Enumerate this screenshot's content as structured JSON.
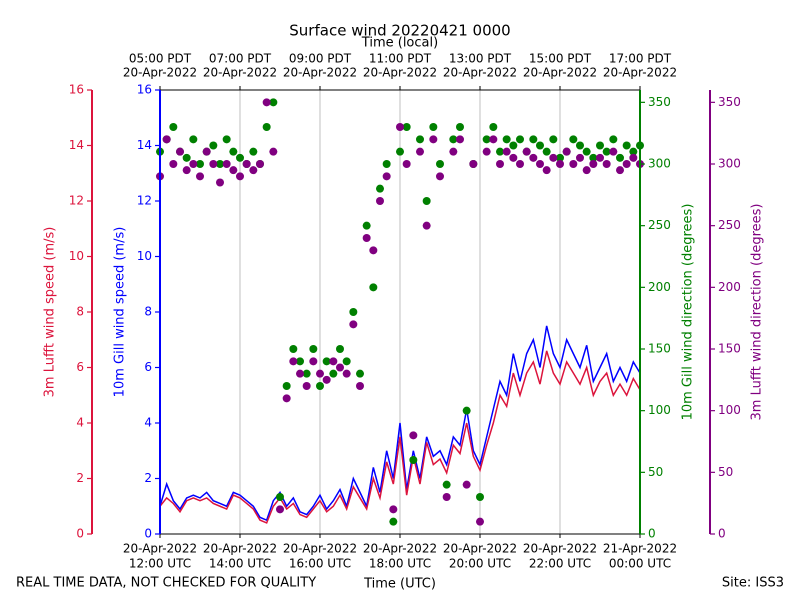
{
  "chart_data": {
    "type": "line",
    "title": "Surface wind 20220421 0000",
    "xlabel": "Time (UTC)",
    "x2label": "Time (local)",
    "ylabel": "10m Gill wind speed (m/s)",
    "y2label": "10m Gill wind direction (degrees)",
    "y3label": "3m Lufft wind speed (m/s)",
    "y4label": "3m Lufft wind direction (degrees)",
    "footer_left": "REAL TIME DATA, NOT CHECKED FOR QUALITY",
    "footer_right": "Site: ISS3",
    "grid": "x",
    "xlim": [
      "2022-04-20T12:00",
      "2022-04-21T00:00"
    ],
    "xticks": [
      {
        "value": "2022-04-20T12:00",
        "label": [
          "20-Apr-2022",
          "12:00 UTC"
        ]
      },
      {
        "value": "2022-04-20T14:00",
        "label": [
          "20-Apr-2022",
          "14:00 UTC"
        ]
      },
      {
        "value": "2022-04-20T16:00",
        "label": [
          "20-Apr-2022",
          "16:00 UTC"
        ]
      },
      {
        "value": "2022-04-20T18:00",
        "label": [
          "20-Apr-2022",
          "18:00 UTC"
        ]
      },
      {
        "value": "2022-04-20T20:00",
        "label": [
          "20-Apr-2022",
          "20:00 UTC"
        ]
      },
      {
        "value": "2022-04-20T22:00",
        "label": [
          "20-Apr-2022",
          "22:00 UTC"
        ]
      },
      {
        "value": "2022-04-21T00:00",
        "label": [
          "21-Apr-2022",
          "00:00 UTC"
        ]
      }
    ],
    "x2ticks": [
      {
        "value": "2022-04-20T12:00",
        "label": [
          "05:00 PDT",
          "20-Apr-2022"
        ]
      },
      {
        "value": "2022-04-20T14:00",
        "label": [
          "07:00 PDT",
          "20-Apr-2022"
        ]
      },
      {
        "value": "2022-04-20T16:00",
        "label": [
          "09:00 PDT",
          "20-Apr-2022"
        ]
      },
      {
        "value": "2022-04-20T18:00",
        "label": [
          "11:00 PDT",
          "20-Apr-2022"
        ]
      },
      {
        "value": "2022-04-20T20:00",
        "label": [
          "13:00 PDT",
          "20-Apr-2022"
        ]
      },
      {
        "value": "2022-04-20T22:00",
        "label": [
          "15:00 PDT",
          "20-Apr-2022"
        ]
      },
      {
        "value": "2022-04-21T00:00",
        "label": [
          "17:00 PDT",
          "20-Apr-2022"
        ]
      }
    ],
    "ylim": [
      0,
      16
    ],
    "yticks": [
      0,
      2,
      4,
      6,
      8,
      10,
      12,
      14,
      16
    ],
    "y2lim": [
      0,
      360
    ],
    "y2ticks": [
      0,
      50,
      100,
      150,
      200,
      250,
      300,
      350
    ],
    "y3lim": [
      0,
      16
    ],
    "y3ticks": [
      0,
      2,
      4,
      6,
      8,
      10,
      12,
      14,
      16
    ],
    "y4lim": [
      0,
      360
    ],
    "y4ticks": [
      0,
      50,
      100,
      150,
      200,
      250,
      300,
      350
    ],
    "x": [
      "2022-04-20T12:00",
      "2022-04-20T12:10",
      "2022-04-20T12:20",
      "2022-04-20T12:30",
      "2022-04-20T12:40",
      "2022-04-20T12:50",
      "2022-04-20T13:00",
      "2022-04-20T13:10",
      "2022-04-20T13:20",
      "2022-04-20T13:30",
      "2022-04-20T13:40",
      "2022-04-20T13:50",
      "2022-04-20T14:00",
      "2022-04-20T14:10",
      "2022-04-20T14:20",
      "2022-04-20T14:30",
      "2022-04-20T14:40",
      "2022-04-20T14:50",
      "2022-04-20T15:00",
      "2022-04-20T15:10",
      "2022-04-20T15:20",
      "2022-04-20T15:30",
      "2022-04-20T15:40",
      "2022-04-20T15:50",
      "2022-04-20T16:00",
      "2022-04-20T16:10",
      "2022-04-20T16:20",
      "2022-04-20T16:30",
      "2022-04-20T16:40",
      "2022-04-20T16:50",
      "2022-04-20T17:00",
      "2022-04-20T17:10",
      "2022-04-20T17:20",
      "2022-04-20T17:30",
      "2022-04-20T17:40",
      "2022-04-20T17:50",
      "2022-04-20T18:00",
      "2022-04-20T18:10",
      "2022-04-20T18:20",
      "2022-04-20T18:30",
      "2022-04-20T18:40",
      "2022-04-20T18:50",
      "2022-04-20T19:00",
      "2022-04-20T19:10",
      "2022-04-20T19:20",
      "2022-04-20T19:30",
      "2022-04-20T19:40",
      "2022-04-20T19:50",
      "2022-04-20T20:00",
      "2022-04-20T20:10",
      "2022-04-20T20:20",
      "2022-04-20T20:30",
      "2022-04-20T20:40",
      "2022-04-20T20:50",
      "2022-04-20T21:00",
      "2022-04-20T21:10",
      "2022-04-20T21:20",
      "2022-04-20T21:30",
      "2022-04-20T21:40",
      "2022-04-20T21:50",
      "2022-04-20T22:00",
      "2022-04-20T22:10",
      "2022-04-20T22:20",
      "2022-04-20T22:30",
      "2022-04-20T22:40",
      "2022-04-20T22:50",
      "2022-04-20T23:00",
      "2022-04-20T23:10",
      "2022-04-20T23:20",
      "2022-04-20T23:30",
      "2022-04-20T23:40",
      "2022-04-20T23:50",
      "2022-04-21T00:00"
    ],
    "series": [
      {
        "name": "10m Gill wind speed",
        "color": "#0000ff",
        "axis": "y",
        "type": "line",
        "values": [
          1.0,
          1.8,
          1.2,
          0.9,
          1.3,
          1.4,
          1.3,
          1.5,
          1.2,
          1.1,
          1.0,
          1.5,
          1.4,
          1.2,
          1.0,
          0.6,
          0.5,
          1.2,
          1.5,
          1.0,
          1.3,
          0.8,
          0.7,
          1.0,
          1.4,
          0.9,
          1.2,
          1.6,
          1.0,
          2.0,
          1.5,
          1.0,
          2.4,
          1.5,
          3.0,
          2.0,
          4.0,
          1.6,
          3.0,
          2.0,
          3.5,
          2.8,
          3.0,
          2.5,
          3.5,
          3.2,
          4.5,
          3.0,
          2.5,
          3.5,
          4.5,
          5.5,
          5.0,
          6.5,
          5.5,
          6.5,
          7.0,
          6.0,
          7.5,
          6.5,
          6.0,
          7.0,
          6.5,
          6.0,
          6.8,
          5.5,
          6.0,
          6.5,
          5.5,
          6.0,
          5.5,
          6.2,
          5.8
        ]
      },
      {
        "name": "3m Lufft wind speed",
        "color": "#dc143c",
        "axis": "y3",
        "type": "line",
        "values": [
          1.0,
          1.3,
          1.1,
          0.8,
          1.2,
          1.3,
          1.2,
          1.3,
          1.1,
          1.0,
          0.9,
          1.4,
          1.3,
          1.1,
          0.9,
          0.5,
          0.4,
          1.0,
          1.3,
          0.9,
          1.1,
          0.7,
          0.6,
          0.9,
          1.2,
          0.8,
          1.0,
          1.4,
          0.9,
          1.7,
          1.3,
          0.9,
          2.0,
          1.3,
          2.6,
          1.8,
          3.5,
          1.4,
          2.8,
          1.8,
          3.3,
          2.5,
          2.7,
          2.2,
          3.2,
          2.9,
          4.0,
          2.8,
          2.3,
          3.2,
          4.0,
          5.0,
          4.6,
          5.8,
          5.0,
          5.8,
          6.2,
          5.4,
          6.6,
          5.8,
          5.4,
          6.2,
          5.8,
          5.4,
          6.0,
          5.0,
          5.5,
          5.8,
          5.0,
          5.4,
          5.0,
          5.6,
          5.2
        ]
      },
      {
        "name": "10m Gill wind direction",
        "color": "#008000",
        "axis": "y2",
        "type": "scatter",
        "values": [
          310,
          320,
          330,
          310,
          305,
          320,
          300,
          310,
          315,
          300,
          320,
          310,
          305,
          300,
          310,
          300,
          330,
          350,
          30,
          120,
          150,
          140,
          130,
          150,
          120,
          140,
          130,
          150,
          140,
          180,
          130,
          250,
          200,
          280,
          300,
          10,
          310,
          330,
          60,
          320,
          270,
          330,
          300,
          40,
          320,
          330,
          100,
          300,
          30,
          320,
          330,
          310,
          320,
          315,
          320,
          310,
          320,
          315,
          310,
          320,
          305,
          310,
          320,
          315,
          310,
          305,
          315,
          310,
          320,
          305,
          315,
          310,
          315
        ]
      },
      {
        "name": "3m Lufft wind direction",
        "color": "#800080",
        "axis": "y4",
        "type": "scatter",
        "values": [
          290,
          320,
          300,
          310,
          295,
          300,
          290,
          310,
          300,
          285,
          300,
          295,
          290,
          300,
          295,
          300,
          350,
          310,
          20,
          110,
          140,
          130,
          120,
          140,
          130,
          125,
          140,
          135,
          130,
          170,
          120,
          240,
          230,
          270,
          290,
          20,
          330,
          300,
          80,
          310,
          250,
          320,
          290,
          30,
          310,
          320,
          40,
          300,
          10,
          310,
          320,
          300,
          310,
          305,
          300,
          310,
          305,
          300,
          295,
          305,
          300,
          310,
          300,
          305,
          295,
          300,
          305,
          300,
          310,
          295,
          300,
          305,
          300
        ]
      }
    ]
  }
}
